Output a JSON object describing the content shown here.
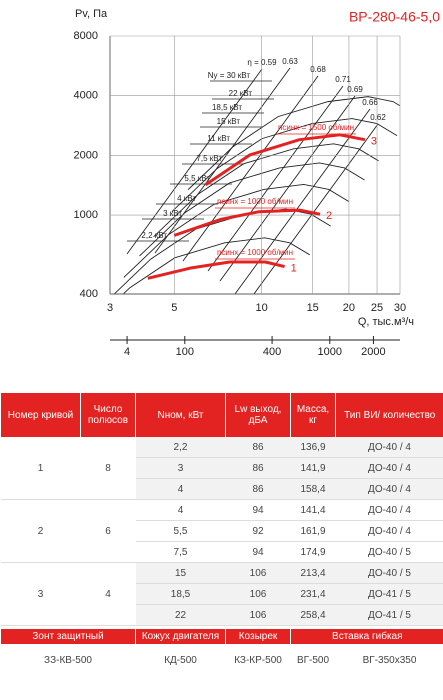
{
  "chart_data": {
    "type": "line",
    "title": "ВР-280-46-5,0",
    "y_label": "Pv, Па",
    "x_label": "Q, тыс.м³/ч",
    "log_x": true,
    "log_y": true,
    "grid": true,
    "xlim": [
      3,
      30
    ],
    "xticks": [
      3,
      5,
      10,
      15,
      20,
      25,
      30
    ],
    "ylim": [
      400,
      8000
    ],
    "yticks": [
      400,
      1000,
      2000,
      4000,
      8000
    ],
    "x2lim": [
      30.5,
      3050
    ],
    "x2ticks": [
      {
        "value": 40,
        "label": "4"
      },
      100,
      400,
      1000,
      2000
    ],
    "series": [
      {
        "name": "1",
        "label": "nсинх = 1000 об/мин",
        "color": "#e32322",
        "x": [
          4.05,
          5.66,
          7.76,
          10.3,
          12.0
        ],
        "values": [
          480,
          540,
          580,
          580,
          550
        ]
      },
      {
        "name": "2",
        "label": "nсинх = 1000 об/мин",
        "color": "#e32322",
        "x": [
          5.0,
          7.2,
          9.8,
          13.5,
          15.9
        ],
        "values": [
          790,
          950,
          1040,
          1060,
          1010
        ]
      },
      {
        "name": "3",
        "label": "nсинх = 1500 об/мин",
        "color": "#e32322",
        "x": [
          6.4,
          9.1,
          13.5,
          18.6,
          22.7
        ],
        "values": [
          1420,
          2010,
          2400,
          2540,
          2400
        ]
      }
    ],
    "efficiency_labels": [
      "η = 0.59",
      "0.63",
      "0.68",
      "0.71",
      "0.69",
      "0.66",
      "0.62"
    ],
    "power_labels": [
      "Ny = 30 кВт",
      "22 кВт",
      "18,5 кВт",
      "15 кВт",
      "11 кВт",
      "7,5 кВт",
      "5,5 кВт",
      "4 кВт",
      "3 кВт",
      "2,2 кВт"
    ]
  },
  "table": {
    "header": [
      "Номер кривой",
      "Число полюсов",
      "Nном, кВт",
      "Lw выход, дБА",
      "Масса, кг",
      "Тип ВИ/ количество"
    ],
    "groups": [
      {
        "curve": "1",
        "poles": "8",
        "rows": [
          [
            "2,2",
            "86",
            "136,9",
            "ДО-40 / 4"
          ],
          [
            "3",
            "86",
            "141,9",
            "ДО-40 / 4"
          ],
          [
            "4",
            "86",
            "158,4",
            "ДО-40 / 4"
          ]
        ]
      },
      {
        "curve": "2",
        "poles": "6",
        "rows": [
          [
            "4",
            "94",
            "141,4",
            "ДО-40 / 4"
          ],
          [
            "5,5",
            "92",
            "161,9",
            "ДО-40 / 4"
          ],
          [
            "7,5",
            "94",
            "174,9",
            "ДО-40 / 5"
          ]
        ]
      },
      {
        "curve": "3",
        "poles": "4",
        "rows": [
          [
            "15",
            "106",
            "213,4",
            "ДО-40 / 5"
          ],
          [
            "18,5",
            "106",
            "231,4",
            "ДО-41 / 5"
          ],
          [
            "22",
            "106",
            "258,4",
            "ДО-41 / 5"
          ]
        ]
      }
    ],
    "accessories": {
      "header": [
        "Зонт защитный",
        "Кожух двигателя",
        "Козырек",
        "Вставка гибкая"
      ],
      "values": [
        "ЗЗ-КВ-500",
        "КД-500",
        "КЗ-КР-500",
        "ВГ-500",
        "ВГ-350х350"
      ]
    }
  }
}
